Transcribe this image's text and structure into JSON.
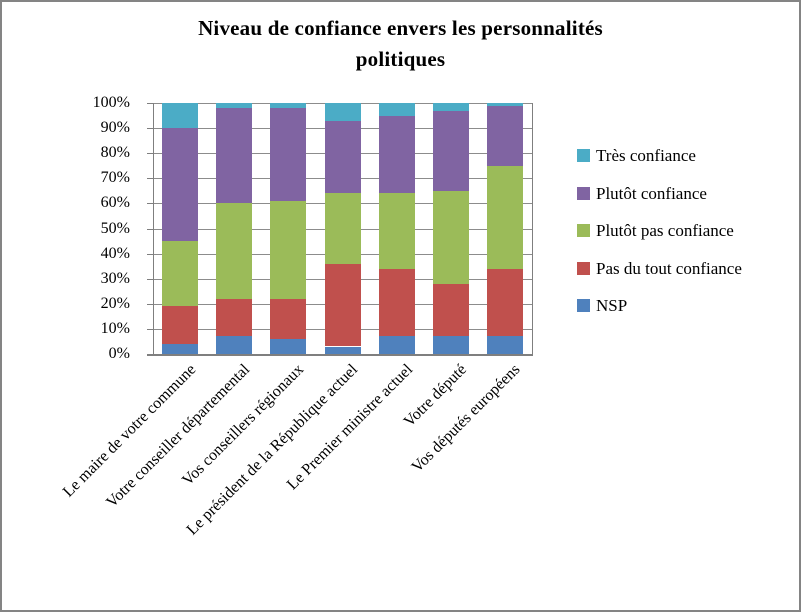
{
  "chart_data": {
    "type": "bar",
    "stacked": true,
    "percent_stacked": true,
    "title": "Niveau de confiance envers les personnalités politiques",
    "title_lines": [
      "Niveau de confiance envers les personnalités",
      "politiques"
    ],
    "categories": [
      "Le maire de votre commune",
      "Votre conseiller départemental",
      "Vos conseillers régionaux",
      "Le président de la République actuel",
      "Le Premier ministre actuel",
      "Votre député",
      "Vos députés européens"
    ],
    "series": [
      {
        "name": "NSP",
        "color": "#4F81BD",
        "values": [
          4,
          7,
          6,
          3,
          7,
          7,
          7
        ]
      },
      {
        "name": "Pas du tout confiance",
        "color": "#C0504D",
        "values": [
          15,
          15,
          16,
          33,
          27,
          21,
          27
        ]
      },
      {
        "name": "Plutôt pas confiance",
        "color": "#9BBB59",
        "values": [
          26,
          38,
          39,
          28,
          30,
          37,
          41
        ]
      },
      {
        "name": "Plutôt confiance",
        "color": "#8064A2",
        "values": [
          45,
          38,
          37,
          29,
          31,
          32,
          24
        ]
      },
      {
        "name": "Très confiance",
        "color": "#4BACC6",
        "values": [
          10,
          2,
          2,
          7,
          5,
          3,
          1
        ]
      }
    ],
    "y_axis": {
      "min": 0,
      "max": 100,
      "tick_step": 10,
      "tick_labels": [
        "0%",
        "10%",
        "20%",
        "30%",
        "40%",
        "50%",
        "60%",
        "70%",
        "80%",
        "90%",
        "100%"
      ]
    },
    "legend": {
      "position": "right",
      "items_top_to_bottom": [
        "Très confiance",
        "Plutôt confiance",
        "Plutôt pas confiance",
        "Pas du tout confiance",
        "NSP"
      ]
    },
    "grid": true
  }
}
